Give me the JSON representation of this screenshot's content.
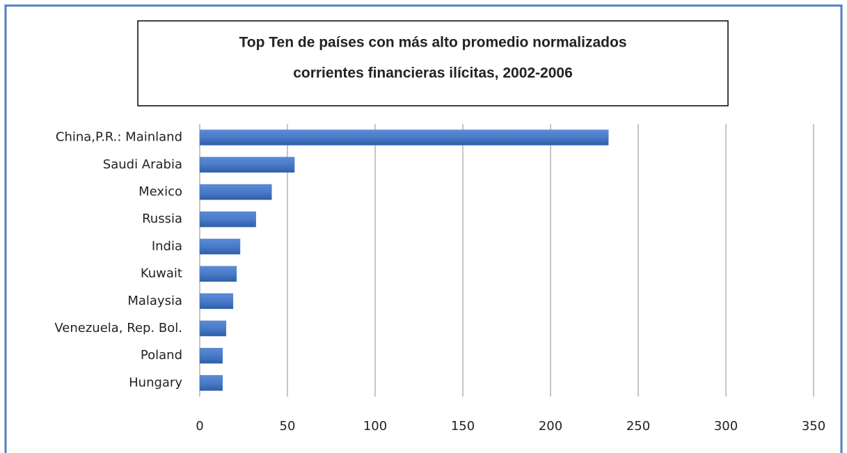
{
  "chart_data": {
    "type": "hbar",
    "title": [
      "Top Ten de países con más alto promedio normalizados",
      "corrientes financieras ilícitas, 2002-2006"
    ],
    "categories": [
      "China,P.R.: Mainland",
      "Saudi Arabia",
      "Mexico",
      "Russia",
      "India",
      "Kuwait",
      "Malaysia",
      "Venezuela, Rep. Bol.",
      "Poland",
      "Hungary"
    ],
    "values": [
      233,
      54,
      41,
      32,
      23,
      21,
      19,
      15,
      13,
      13
    ],
    "color": "#4a7bc8",
    "xlim": [
      0,
      350
    ],
    "xticks": [
      0,
      50,
      100,
      150,
      200,
      250,
      300,
      350
    ],
    "grid": true
  }
}
